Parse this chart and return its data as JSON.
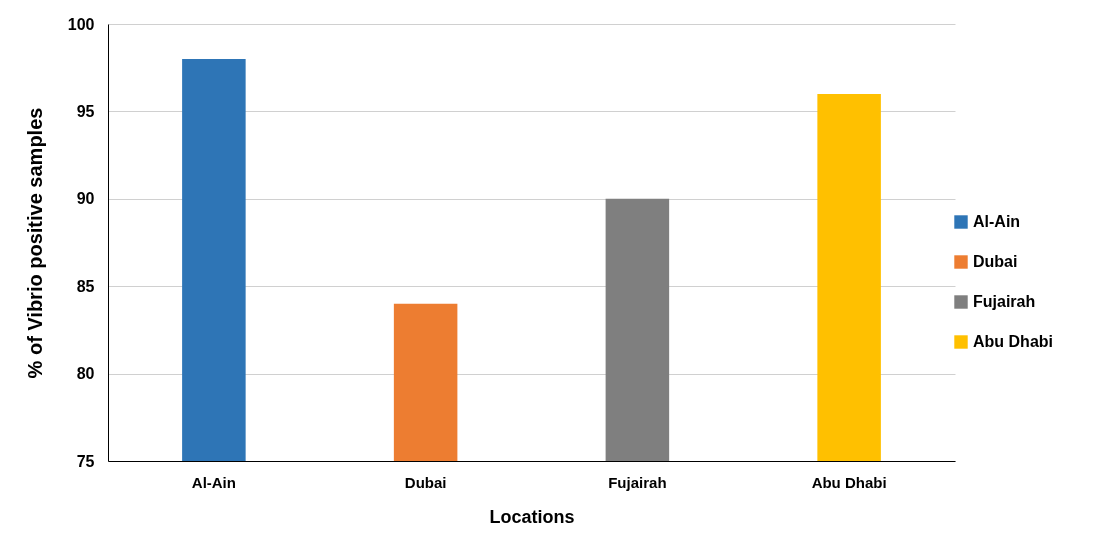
{
  "chart_data": {
    "type": "bar",
    "xlabel": "Locations",
    "ylabel": "% of Vibrio positive samples",
    "categories": [
      "Al-Ain",
      "Dubai",
      "Fujairah",
      "Abu Dhabi"
    ],
    "series": [
      {
        "name": "Al-Ain",
        "color": "#2e75b6",
        "values": [
          98,
          null,
          null,
          null
        ]
      },
      {
        "name": "Dubai",
        "color": "#ed7d31",
        "values": [
          null,
          84,
          null,
          null
        ]
      },
      {
        "name": "Fujairah",
        "color": "#7f7f7f",
        "values": [
          null,
          null,
          90,
          null
        ]
      },
      {
        "name": "Abu Dhabi",
        "color": "#ffc000",
        "values": [
          null,
          null,
          null,
          96
        ]
      }
    ],
    "ylim": [
      75,
      100
    ],
    "yticks": [
      75,
      80,
      85,
      90,
      95,
      100
    ],
    "grid": "y",
    "legend": "right"
  }
}
